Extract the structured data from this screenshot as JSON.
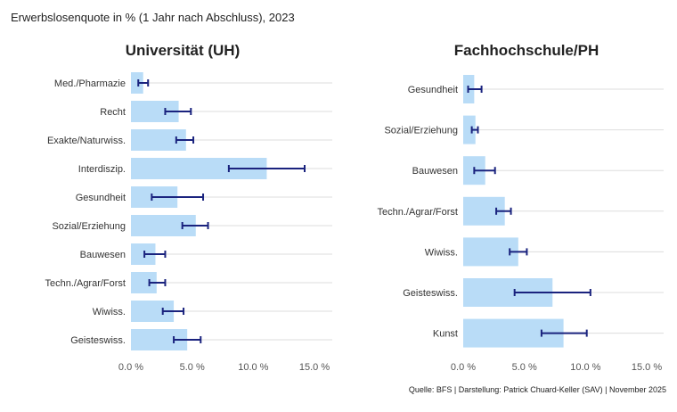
{
  "title": "Erwerbslosenquote in % (1 Jahr nach Abschluss), 2023",
  "footer": "Quelle: BFS | Darstellung: Patrick Chuard-Keller (SAV) | November 2025",
  "colors": {
    "bar": "#b9dcf7",
    "errorbar": "#1a237e",
    "grid": "#dddddd"
  },
  "chart_data": [
    {
      "type": "bar",
      "orientation": "horizontal",
      "title": "Universität (UH)",
      "xlim": [
        0,
        16
      ],
      "xticks": [
        0,
        5,
        10,
        15
      ],
      "xtick_labels": [
        "0.0 %",
        "5.0 %",
        "10.0 %",
        "15.0 %"
      ],
      "categories": [
        "Med./Pharmazie",
        "Recht",
        "Exakte/Naturwiss.",
        "Interdiszip.",
        "Gesundheit",
        "Sozial/Erziehung",
        "Bauwesen",
        "Techn./Agrar/Forst",
        "Wiwiss.",
        "Geisteswiss."
      ],
      "values": [
        1.0,
        3.9,
        4.5,
        11.1,
        3.8,
        5.3,
        2.0,
        2.1,
        3.5,
        4.6
      ],
      "ci_low": [
        0.6,
        2.8,
        3.7,
        8.0,
        1.7,
        4.2,
        1.1,
        1.5,
        2.6,
        3.5
      ],
      "ci_high": [
        1.4,
        4.9,
        5.1,
        14.2,
        5.9,
        6.3,
        2.8,
        2.8,
        4.3,
        5.7
      ]
    },
    {
      "type": "bar",
      "orientation": "horizontal",
      "title": "Fachhochschule/PH",
      "xlim": [
        0,
        16
      ],
      "xticks": [
        0,
        5,
        10,
        15
      ],
      "xtick_labels": [
        "0.0 %",
        "5.0 %",
        "10.0 %",
        "15.0 %"
      ],
      "categories": [
        "Gesundheit",
        "Sozial/Erziehung",
        "Bauwesen",
        "Techn./Agrar/Forst",
        "Wiwiss.",
        "Geisteswiss.",
        "Kunst"
      ],
      "values": [
        0.9,
        1.0,
        1.8,
        3.4,
        4.5,
        7.3,
        8.2
      ],
      "ci_low": [
        0.4,
        0.7,
        0.9,
        2.7,
        3.8,
        4.2,
        6.4
      ],
      "ci_high": [
        1.5,
        1.2,
        2.6,
        3.9,
        5.2,
        10.4,
        10.1
      ]
    }
  ]
}
